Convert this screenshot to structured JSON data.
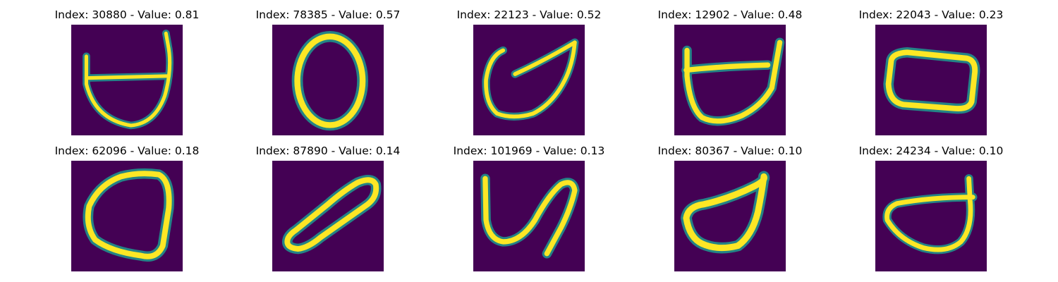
{
  "figure": {
    "colormap": "viridis",
    "background_color": "#440154",
    "stroke_color": "#fde725",
    "panels": [
      {
        "index": "30880",
        "value": "0.81",
        "title": "Index: 30880 - Value: 0.81"
      },
      {
        "index": "78385",
        "value": "0.57",
        "title": "Index: 78385 - Value: 0.57"
      },
      {
        "index": "22123",
        "value": "0.52",
        "title": "Index: 22123 - Value: 0.52"
      },
      {
        "index": "12902",
        "value": "0.48",
        "title": "Index: 12902 - Value: 0.48"
      },
      {
        "index": "22043",
        "value": "0.23",
        "title": "Index: 22043 - Value: 0.23"
      },
      {
        "index": "62096",
        "value": "0.18",
        "title": "Index: 62096 - Value: 0.18"
      },
      {
        "index": "87890",
        "value": "0.14",
        "title": "Index: 87890 - Value: 0.14"
      },
      {
        "index": "101969",
        "value": "0.13",
        "title": "Index: 101969 - Value: 0.13"
      },
      {
        "index": "80367",
        "value": "0.10",
        "title": "Index: 80367 - Value: 0.10"
      },
      {
        "index": "24234",
        "value": "0.10",
        "title": "Index: 24234 - Value: 0.10"
      }
    ]
  }
}
